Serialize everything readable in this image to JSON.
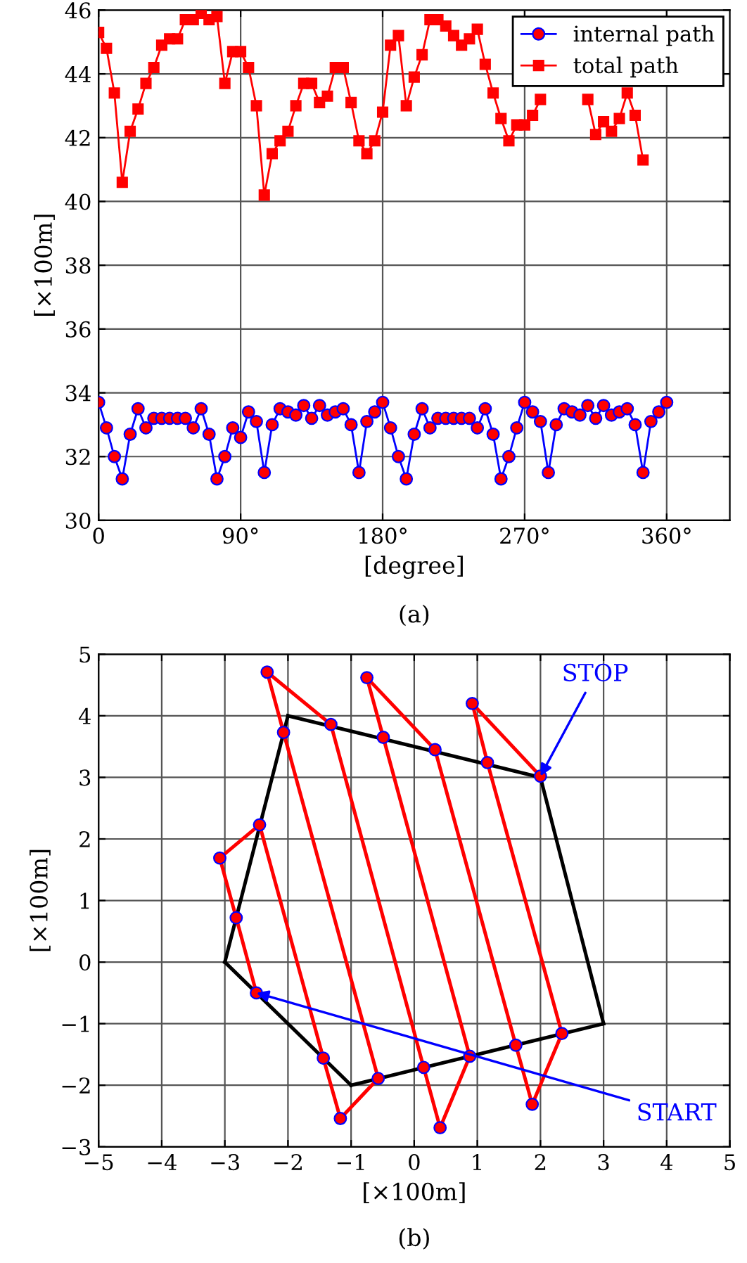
{
  "chart_data": [
    {
      "type": "line",
      "xlabel": "[degree]",
      "ylabel": "[×100m]",
      "xlim": [
        0,
        400
      ],
      "ylim": [
        30,
        46
      ],
      "xticks": [
        0,
        {
          "value": 90,
          "label": "90°"
        },
        {
          "value": 180,
          "label": "180°"
        },
        {
          "value": 270,
          "label": "270°"
        },
        {
          "value": 360,
          "label": "360°"
        }
      ],
      "yticks": [
        30,
        32,
        34,
        36,
        38,
        40,
        42,
        44,
        46
      ],
      "grid": true,
      "legend": "top right",
      "line_style": "solid",
      "x": [
        0,
        5,
        10,
        15,
        20,
        25,
        30,
        35,
        40,
        45,
        50,
        55,
        60,
        65,
        70,
        75,
        80,
        85,
        90,
        95,
        100,
        105,
        110,
        115,
        120,
        125,
        130,
        135,
        140,
        145,
        150,
        155,
        160,
        165,
        170,
        175,
        180,
        185,
        190,
        195,
        200,
        205,
        210,
        215,
        220,
        225,
        230,
        235,
        240,
        245,
        250,
        255,
        260,
        265,
        270,
        275,
        280,
        285,
        290,
        295,
        300,
        305,
        310,
        315,
        320,
        325,
        330,
        335,
        340,
        345,
        350,
        355,
        360
      ],
      "series": [
        {
          "name": "internal path",
          "color": "#0000ff",
          "marker": "circle",
          "values": [
            33.7,
            32.9,
            32.0,
            31.3,
            32.7,
            33.5,
            32.9,
            33.2,
            33.2,
            33.2,
            33.2,
            33.2,
            32.9,
            33.5,
            32.7,
            31.3,
            32.0,
            32.9,
            32.6,
            33.4,
            33.1,
            31.5,
            33.0,
            33.5,
            33.4,
            33.3,
            33.6,
            33.2,
            33.6,
            33.3,
            33.4,
            33.5,
            33.0,
            31.5,
            33.1,
            33.4,
            33.7,
            32.9,
            32.0,
            31.3,
            32.7,
            33.5,
            32.9,
            33.2,
            33.2,
            33.2,
            33.2,
            33.2,
            32.9,
            33.5,
            32.7,
            31.3,
            32.0,
            32.9,
            33.7,
            33.4,
            33.1,
            31.5,
            33.0,
            33.5,
            33.4,
            33.3,
            33.6,
            33.2,
            33.6,
            33.3,
            33.4,
            33.5,
            33.0,
            31.5,
            33.1,
            33.4,
            33.7
          ]
        },
        {
          "name": "total path",
          "color": "#ff0000",
          "marker": "square",
          "values": [
            45.3,
            44.8,
            43.4,
            40.6,
            42.2,
            42.9,
            43.7,
            44.2,
            44.9,
            45.1,
            45.1,
            45.7,
            45.7,
            45.9,
            45.7,
            45.8,
            43.7,
            44.7,
            44.7,
            44.2,
            43.0,
            40.2,
            41.5,
            41.9,
            42.2,
            43.0,
            43.7,
            43.7,
            43.1,
            43.3,
            44.2,
            44.2,
            43.1,
            41.9,
            41.5,
            41.9,
            42.8,
            44.9,
            45.2,
            43.0,
            43.9,
            44.6,
            45.7,
            45.7,
            45.5,
            45.2,
            44.9,
            45.1,
            45.4,
            44.3,
            43.4,
            42.6,
            41.9,
            42.4,
            42.4,
            42.7,
            43.2,
            null,
            null,
            null,
            null,
            null,
            43.2,
            42.1,
            42.5,
            42.2,
            42.6,
            43.4,
            42.7,
            41.3,
            null,
            null,
            null
          ]
        }
      ],
      "annotations": [
        "(a)"
      ]
    },
    {
      "type": "line",
      "xlabel": "[×100m]",
      "ylabel": "[×100m]",
      "xlim": [
        -5,
        5
      ],
      "ylim": [
        -3,
        5
      ],
      "xticks": [
        {
          "value": -5,
          "label": "−5"
        },
        {
          "value": -4,
          "label": "−4"
        },
        {
          "value": -3,
          "label": "−3"
        },
        {
          "value": -2,
          "label": "−2"
        },
        {
          "value": -1,
          "label": "−1"
        },
        0,
        1,
        2,
        3,
        4,
        5
      ],
      "yticks": [
        {
          "value": -3,
          "label": "−3"
        },
        {
          "value": -2,
          "label": "−2"
        },
        {
          "value": -1,
          "label": "−1"
        },
        0,
        1,
        2,
        3,
        4,
        5
      ],
      "grid": true,
      "line_style": "solid",
      "series": [
        {
          "color": "#000000",
          "marker": "none",
          "x": [
            -3,
            -2
          ],
          "values": [
            0,
            4
          ]
        },
        {
          "color": "#000000",
          "marker": "none",
          "x": [
            -2,
            2
          ],
          "values": [
            4,
            3
          ]
        },
        {
          "color": "#000000",
          "marker": "none",
          "x": [
            2,
            3
          ],
          "values": [
            3,
            -1
          ]
        },
        {
          "color": "#000000",
          "marker": "none",
          "x": [
            -1,
            3
          ],
          "values": [
            -2,
            -1
          ]
        },
        {
          "color": "#000000",
          "marker": "none",
          "x": [
            -3,
            -1
          ],
          "values": [
            0,
            -2
          ]
        },
        {
          "color": "#ff0000",
          "marker": "circle",
          "x": [
            -2.5,
            -2.82,
            -3.08,
            -2.45,
            -1.44,
            -1.17,
            -0.57,
            -2.07,
            -2.33,
            -1.32,
            0.15,
            0.41,
            0.88,
            -0.49,
            -0.75,
            0.33,
            1.61,
            1.87,
            2.34,
            1.16,
            0.92,
            2.0
          ],
          "values": [
            -0.5,
            0.72,
            1.69,
            2.23,
            -1.56,
            -2.54,
            -1.89,
            3.73,
            4.71,
            3.86,
            -1.71,
            -2.69,
            -1.53,
            3.65,
            4.62,
            3.45,
            -1.35,
            -2.31,
            -1.16,
            3.24,
            4.2,
            3.02
          ]
        }
      ],
      "annotations": [
        {
          "text": "STOP",
          "x": 2.0,
          "y": 3.02
        },
        {
          "text": "START",
          "x": -2.5,
          "y": -0.5
        },
        "(b)"
      ]
    }
  ]
}
